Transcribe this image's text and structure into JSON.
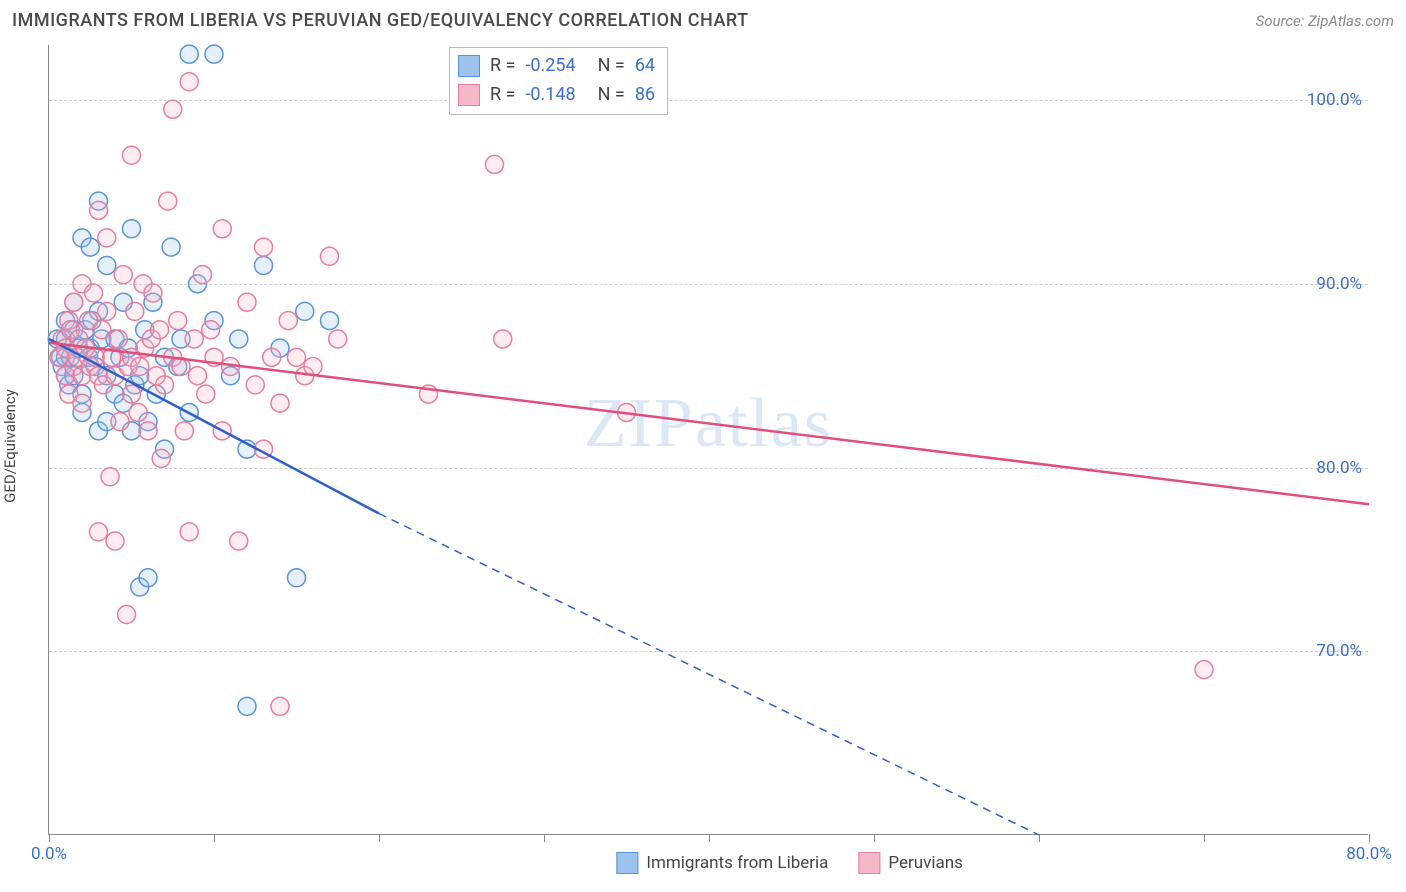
{
  "title": "IMMIGRANTS FROM LIBERIA VS PERUVIAN GED/EQUIVALENCY CORRELATION CHART",
  "source": "Source: ZipAtlas.com",
  "watermark": "ZIPatlas",
  "ylabel": "GED/Equivalency",
  "chart": {
    "type": "scatter",
    "xlim": [
      0,
      80
    ],
    "ylim": [
      60,
      103
    ],
    "x_ticks": [
      0,
      10,
      20,
      30,
      40,
      50,
      60,
      70,
      80
    ],
    "x_tick_labels": {
      "0": "0.0%",
      "80": "80.0%"
    },
    "y_ticks": [
      70,
      80,
      90,
      100
    ],
    "y_tick_labels": [
      "70.0%",
      "80.0%",
      "90.0%",
      "100.0%"
    ],
    "background_color": "#ffffff",
    "grid_color": "#cccccc",
    "axis_color": "#888888",
    "marker_radius": 9,
    "series": [
      {
        "name": "Immigrants from Liberia",
        "color_fill": "#9cc3ee",
        "color_stroke": "#5a94d6",
        "correlation_R": "-0.254",
        "correlation_N": "64",
        "regression": {
          "x1": 0,
          "y1": 87.0,
          "x2": 20,
          "y2": 77.5,
          "extend_to_x": 60,
          "extend_to_y": 60.0,
          "dash_after": true
        },
        "points": [
          [
            0.5,
            87
          ],
          [
            0.7,
            86
          ],
          [
            0.8,
            85.5
          ],
          [
            1,
            85
          ],
          [
            1,
            86
          ],
          [
            1,
            87
          ],
          [
            1,
            88
          ],
          [
            1.2,
            84.5
          ],
          [
            1.3,
            86
          ],
          [
            1.5,
            87.5
          ],
          [
            1.5,
            85
          ],
          [
            1.5,
            89
          ],
          [
            1.8,
            86.5
          ],
          [
            2,
            92.5
          ],
          [
            2,
            84
          ],
          [
            2,
            83
          ],
          [
            2.2,
            87.5
          ],
          [
            2.4,
            86
          ],
          [
            2.5,
            86.5
          ],
          [
            2.5,
            92
          ],
          [
            2.6,
            88
          ],
          [
            2.8,
            85.5
          ],
          [
            3,
            94.5
          ],
          [
            3,
            82
          ],
          [
            3,
            88.5
          ],
          [
            3.2,
            87
          ],
          [
            3.5,
            82.5
          ],
          [
            3.5,
            85
          ],
          [
            3.5,
            91
          ],
          [
            4,
            87
          ],
          [
            4,
            84
          ],
          [
            4.3,
            86
          ],
          [
            4.5,
            83.5
          ],
          [
            4.5,
            89
          ],
          [
            4.8,
            86.5
          ],
          [
            5,
            82
          ],
          [
            5,
            93
          ],
          [
            5.2,
            84.5
          ],
          [
            5.5,
            85
          ],
          [
            5.8,
            87.5
          ],
          [
            5.5,
            73.5
          ],
          [
            6,
            74
          ],
          [
            6,
            82.5
          ],
          [
            6.3,
            89
          ],
          [
            6.5,
            84
          ],
          [
            7,
            81
          ],
          [
            7,
            86
          ],
          [
            7.4,
            92
          ],
          [
            7.8,
            85.5
          ],
          [
            8,
            87
          ],
          [
            8.5,
            83
          ],
          [
            8.5,
            102.5
          ],
          [
            9,
            90
          ],
          [
            10,
            102.5
          ],
          [
            10,
            88
          ],
          [
            11,
            85
          ],
          [
            11.5,
            87
          ],
          [
            12,
            81
          ],
          [
            12,
            67
          ],
          [
            13,
            91
          ],
          [
            14,
            86.5
          ],
          [
            15,
            74
          ],
          [
            15.5,
            88.5
          ],
          [
            17,
            88
          ]
        ]
      },
      {
        "name": "Peruvians",
        "color_fill": "#f6b8c9",
        "color_stroke": "#e67ea0",
        "correlation_R": "-0.148",
        "correlation_N": "86",
        "regression": {
          "x1": 0,
          "y1": 86.8,
          "x2": 80,
          "y2": 78.0,
          "dash_after": false
        },
        "points": [
          [
            0.6,
            86
          ],
          [
            0.8,
            87
          ],
          [
            1,
            86.5
          ],
          [
            1,
            85
          ],
          [
            1.2,
            88
          ],
          [
            1.2,
            84
          ],
          [
            1.3,
            87.5
          ],
          [
            1.5,
            85.5
          ],
          [
            1.5,
            89
          ],
          [
            1.7,
            86
          ],
          [
            1.8,
            87
          ],
          [
            2,
            85
          ],
          [
            2,
            90
          ],
          [
            2,
            83.5
          ],
          [
            2.2,
            86.5
          ],
          [
            2.4,
            88
          ],
          [
            2.5,
            85.5
          ],
          [
            2.7,
            89.5
          ],
          [
            2.8,
            86
          ],
          [
            3,
            94
          ],
          [
            3,
            76.5
          ],
          [
            3,
            85
          ],
          [
            3.2,
            87.5
          ],
          [
            3.3,
            84.5
          ],
          [
            3.5,
            88.5
          ],
          [
            3.5,
            92.5
          ],
          [
            3.7,
            79.5
          ],
          [
            3.8,
            86
          ],
          [
            4,
            85
          ],
          [
            4,
            76
          ],
          [
            4.2,
            87
          ],
          [
            4.3,
            82.5
          ],
          [
            4.5,
            90.5
          ],
          [
            4.7,
            72
          ],
          [
            4.8,
            85.5
          ],
          [
            5,
            97
          ],
          [
            5,
            86
          ],
          [
            5,
            84
          ],
          [
            5.2,
            88.5
          ],
          [
            5.4,
            83
          ],
          [
            5.5,
            85.5
          ],
          [
            5.7,
            90
          ],
          [
            5.8,
            86.5
          ],
          [
            6,
            82
          ],
          [
            6.2,
            87
          ],
          [
            6.3,
            89.5
          ],
          [
            6.5,
            85
          ],
          [
            6.7,
            87.5
          ],
          [
            6.8,
            80.5
          ],
          [
            7,
            84.5
          ],
          [
            7.2,
            94.5
          ],
          [
            7.5,
            86
          ],
          [
            7.5,
            99.5
          ],
          [
            7.8,
            88
          ],
          [
            8,
            85.5
          ],
          [
            8.2,
            82
          ],
          [
            8.5,
            76.5
          ],
          [
            8.5,
            101
          ],
          [
            8.8,
            87
          ],
          [
            9,
            85
          ],
          [
            9.3,
            90.5
          ],
          [
            9.5,
            84
          ],
          [
            9.8,
            87.5
          ],
          [
            10,
            86
          ],
          [
            10.5,
            82
          ],
          [
            10.5,
            93
          ],
          [
            11,
            85.5
          ],
          [
            11.5,
            76
          ],
          [
            12,
            89
          ],
          [
            12.5,
            84.5
          ],
          [
            13,
            81
          ],
          [
            13,
            92
          ],
          [
            13.5,
            86
          ],
          [
            14,
            67
          ],
          [
            14,
            83.5
          ],
          [
            14.5,
            88
          ],
          [
            15,
            86
          ],
          [
            15.5,
            85
          ],
          [
            16,
            85.5
          ],
          [
            17,
            91.5
          ],
          [
            17.5,
            87
          ],
          [
            27,
            96.5
          ],
          [
            23,
            84
          ],
          [
            27.5,
            87
          ],
          [
            35,
            83
          ],
          [
            70,
            69
          ]
        ]
      }
    ]
  },
  "legend": {
    "series1_label": "Immigrants from Liberia",
    "series2_label": "Peruvians"
  },
  "colors": {
    "tick_label": "#3b6fc9",
    "text": "#4a4a4a"
  }
}
